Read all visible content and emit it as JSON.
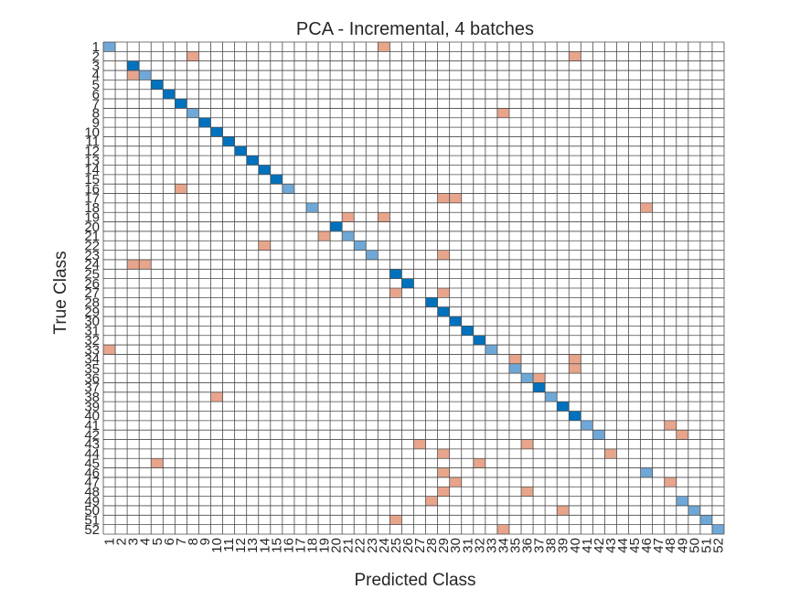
{
  "chart_data": {
    "type": "heatmap",
    "title": "PCA - Incremental, 4 batches",
    "xlabel": "Predicted Class",
    "ylabel": "True Class",
    "n_classes": 52,
    "labels": [
      "1",
      "2",
      "3",
      "4",
      "5",
      "6",
      "7",
      "8",
      "9",
      "10",
      "11",
      "12",
      "13",
      "14",
      "15",
      "16",
      "17",
      "18",
      "19",
      "20",
      "21",
      "22",
      "23",
      "24",
      "25",
      "26",
      "27",
      "28",
      "29",
      "30",
      "31",
      "32",
      "33",
      "34",
      "35",
      "36",
      "37",
      "38",
      "39",
      "40",
      "41",
      "42",
      "43",
      "44",
      "45",
      "46",
      "47",
      "48",
      "49",
      "50",
      "51",
      "52"
    ],
    "colors": {
      "correct_dark": "#0072bd",
      "correct_light": "#6fa8d6",
      "error": "#e8a58c",
      "grid": "#4a4a4a"
    },
    "correct_cells": [
      {
        "true": 1,
        "pred": 1,
        "shade": "light"
      },
      {
        "true": 3,
        "pred": 3,
        "shade": "dark"
      },
      {
        "true": 4,
        "pred": 4,
        "shade": "light"
      },
      {
        "true": 5,
        "pred": 5,
        "shade": "dark"
      },
      {
        "true": 6,
        "pred": 6,
        "shade": "dark"
      },
      {
        "true": 7,
        "pred": 7,
        "shade": "dark"
      },
      {
        "true": 8,
        "pred": 8,
        "shade": "light"
      },
      {
        "true": 9,
        "pred": 9,
        "shade": "dark"
      },
      {
        "true": 10,
        "pred": 10,
        "shade": "dark"
      },
      {
        "true": 11,
        "pred": 11,
        "shade": "dark"
      },
      {
        "true": 12,
        "pred": 12,
        "shade": "dark"
      },
      {
        "true": 13,
        "pred": 13,
        "shade": "dark"
      },
      {
        "true": 14,
        "pred": 14,
        "shade": "dark"
      },
      {
        "true": 15,
        "pred": 15,
        "shade": "dark"
      },
      {
        "true": 16,
        "pred": 16,
        "shade": "light"
      },
      {
        "true": 18,
        "pred": 18,
        "shade": "light"
      },
      {
        "true": 20,
        "pred": 20,
        "shade": "dark"
      },
      {
        "true": 21,
        "pred": 21,
        "shade": "light"
      },
      {
        "true": 22,
        "pred": 22,
        "shade": "light"
      },
      {
        "true": 23,
        "pred": 23,
        "shade": "light"
      },
      {
        "true": 25,
        "pred": 25,
        "shade": "dark"
      },
      {
        "true": 26,
        "pred": 26,
        "shade": "dark"
      },
      {
        "true": 28,
        "pred": 28,
        "shade": "dark"
      },
      {
        "true": 29,
        "pred": 29,
        "shade": "dark"
      },
      {
        "true": 30,
        "pred": 30,
        "shade": "dark"
      },
      {
        "true": 31,
        "pred": 31,
        "shade": "dark"
      },
      {
        "true": 32,
        "pred": 32,
        "shade": "dark"
      },
      {
        "true": 33,
        "pred": 33,
        "shade": "light"
      },
      {
        "true": 35,
        "pred": 35,
        "shade": "light"
      },
      {
        "true": 36,
        "pred": 36,
        "shade": "light"
      },
      {
        "true": 37,
        "pred": 37,
        "shade": "dark"
      },
      {
        "true": 38,
        "pred": 38,
        "shade": "light"
      },
      {
        "true": 39,
        "pred": 39,
        "shade": "dark"
      },
      {
        "true": 40,
        "pred": 40,
        "shade": "dark"
      },
      {
        "true": 41,
        "pred": 41,
        "shade": "light"
      },
      {
        "true": 42,
        "pred": 42,
        "shade": "light"
      },
      {
        "true": 46,
        "pred": 46,
        "shade": "light"
      },
      {
        "true": 49,
        "pred": 49,
        "shade": "light"
      },
      {
        "true": 50,
        "pred": 50,
        "shade": "light"
      },
      {
        "true": 51,
        "pred": 51,
        "shade": "light"
      },
      {
        "true": 52,
        "pred": 52,
        "shade": "light"
      }
    ],
    "error_cells": [
      {
        "true": 1,
        "pred": 24
      },
      {
        "true": 2,
        "pred": 8
      },
      {
        "true": 2,
        "pred": 40
      },
      {
        "true": 4,
        "pred": 3
      },
      {
        "true": 8,
        "pred": 34
      },
      {
        "true": 16,
        "pred": 7
      },
      {
        "true": 17,
        "pred": 29
      },
      {
        "true": 17,
        "pred": 30
      },
      {
        "true": 18,
        "pred": 46
      },
      {
        "true": 19,
        "pred": 21
      },
      {
        "true": 19,
        "pred": 24
      },
      {
        "true": 21,
        "pred": 19
      },
      {
        "true": 22,
        "pred": 14
      },
      {
        "true": 23,
        "pred": 29
      },
      {
        "true": 24,
        "pred": 3
      },
      {
        "true": 24,
        "pred": 4
      },
      {
        "true": 27,
        "pred": 25
      },
      {
        "true": 27,
        "pred": 29
      },
      {
        "true": 33,
        "pred": 1
      },
      {
        "true": 34,
        "pred": 35
      },
      {
        "true": 34,
        "pred": 40
      },
      {
        "true": 35,
        "pred": 40
      },
      {
        "true": 36,
        "pred": 37
      },
      {
        "true": 38,
        "pred": 10
      },
      {
        "true": 41,
        "pred": 48
      },
      {
        "true": 42,
        "pred": 49
      },
      {
        "true": 43,
        "pred": 27
      },
      {
        "true": 43,
        "pred": 36
      },
      {
        "true": 44,
        "pred": 29
      },
      {
        "true": 44,
        "pred": 43
      },
      {
        "true": 45,
        "pred": 5
      },
      {
        "true": 45,
        "pred": 32
      },
      {
        "true": 46,
        "pred": 29
      },
      {
        "true": 47,
        "pred": 30
      },
      {
        "true": 47,
        "pred": 48
      },
      {
        "true": 48,
        "pred": 29
      },
      {
        "true": 48,
        "pred": 36
      },
      {
        "true": 49,
        "pred": 28
      },
      {
        "true": 50,
        "pred": 39
      },
      {
        "true": 51,
        "pred": 25
      },
      {
        "true": 52,
        "pred": 34
      }
    ]
  }
}
